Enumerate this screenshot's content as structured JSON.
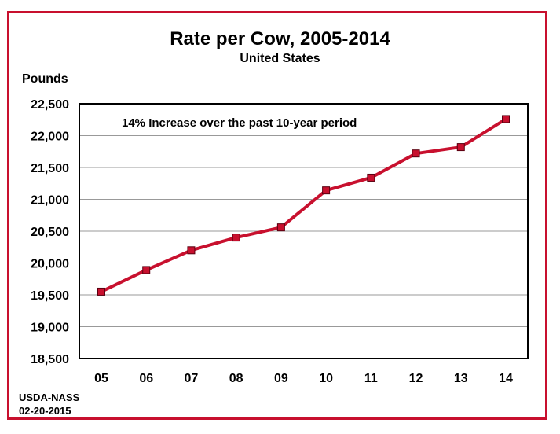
{
  "colors": {
    "frame": "#c8102e",
    "line": "#c8102e",
    "marker": "#c8102e",
    "grid": "#999999"
  },
  "chart_data": {
    "type": "line",
    "title": "Rate per Cow, 2005-2014",
    "subtitle": "United States",
    "ylabel": "Pounds",
    "xlabel": "",
    "annotation": "14% Increase over the past 10-year period",
    "categories": [
      "05",
      "06",
      "07",
      "08",
      "09",
      "10",
      "11",
      "12",
      "13",
      "14"
    ],
    "series": [
      {
        "values": [
          19550,
          19890,
          20200,
          20400,
          20560,
          21140,
          21340,
          21720,
          21820,
          22260
        ]
      }
    ],
    "ylim": [
      18500,
      22500
    ],
    "yticks": [
      18500,
      19000,
      19500,
      20000,
      20500,
      21000,
      21500,
      22000,
      22500
    ],
    "ytick_labels": [
      "18,500",
      "19,000",
      "19,500",
      "20,000",
      "20,500",
      "21,000",
      "21,500",
      "22,000",
      "22,500"
    ],
    "grid": true,
    "legend": "none"
  },
  "footer": {
    "source": "USDA-NASS",
    "date": "02-20-2015"
  }
}
